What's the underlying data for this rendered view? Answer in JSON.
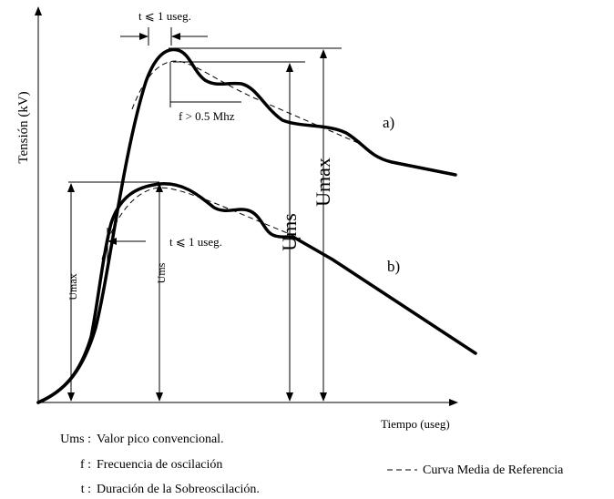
{
  "axes": {
    "y_label": "Tensión (kV)",
    "x_label": "Tiempo (useg)"
  },
  "curves": {
    "a": "a)",
    "b": "b)"
  },
  "annotations": {
    "t_top": "t ⩽ 1 useg.",
    "f_top": "f > 0.5 Mhz",
    "ums_a": "Ums",
    "umax_a": "Umax",
    "umax_b": "Umax",
    "ums_b": "Ums",
    "t_b": "t ⩽ 1 useg."
  },
  "legend": {
    "items": [
      {
        "symbol": "Ums :",
        "text": "Valor pico convencional."
      },
      {
        "symbol": "f :",
        "text": "Frecuencia de oscilación"
      },
      {
        "symbol": "t :",
        "text": "Duración de la Sobreoscilación."
      }
    ],
    "dashed": "Curva Media de Referencia"
  }
}
